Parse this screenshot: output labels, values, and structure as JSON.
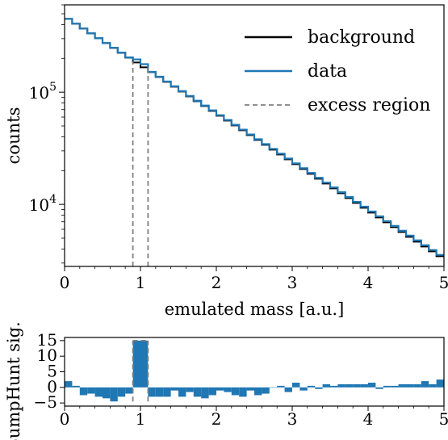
{
  "colors": {
    "background": "#000000",
    "data": "#1f77b4",
    "excess": "#808080",
    "significance": "#1f77b4"
  },
  "chart_data": [
    {
      "type": "line",
      "scale": "log-y",
      "title": "",
      "xlabel": "emulated mass [a.u.]",
      "ylabel": "counts",
      "xlim": [
        0,
        5
      ],
      "ylim": [
        2800,
        600000
      ],
      "x_ticks": [
        "0",
        "1",
        "2",
        "3",
        "4",
        "5"
      ],
      "y_ticks": [
        {
          "value": 10000,
          "label": "10^4"
        },
        {
          "value": 100000,
          "label": "10^5"
        }
      ],
      "legend": {
        "placement": "top-right",
        "entries": [
          {
            "label": "background",
            "color": "#000000",
            "style": "solid"
          },
          {
            "label": "data",
            "color": "#1f77b4",
            "style": "solid"
          },
          {
            "label": "excess region",
            "color": "#808080",
            "style": "dashed"
          }
        ]
      },
      "bin_width": 0.1,
      "series": [
        {
          "name": "background",
          "start": 450000,
          "end": 3450,
          "bins": 50
        },
        {
          "name": "data",
          "start": 450000,
          "end": 3550,
          "bins": 50,
          "excess_bins": [
            9,
            10
          ],
          "excess_factor": 1.06
        }
      ],
      "excess_region": [
        0.9,
        1.1
      ]
    },
    {
      "type": "bar",
      "title": "",
      "xlabel": "",
      "ylabel": "BumpHunt sig.",
      "xlim": [
        0,
        5
      ],
      "ylim": [
        -6,
        16
      ],
      "x_ticks": [
        "0",
        "1",
        "2",
        "3",
        "4",
        "5"
      ],
      "y_ticks": [
        "15",
        "10",
        "5",
        "0",
        "−5"
      ],
      "bin_width": 0.1,
      "values": [
        2.0,
        0.5,
        -2.5,
        -2.0,
        -3.0,
        -3.5,
        -4.5,
        -3.0,
        -2.0,
        15.0,
        15.0,
        -3.0,
        -3.0,
        -3.0,
        -1.0,
        -3.0,
        -1.5,
        -3.0,
        -3.5,
        -2.5,
        -1.0,
        -1.5,
        -2.5,
        -3.0,
        -1.0,
        -2.5,
        -2.0,
        0.0,
        0.5,
        -1.5,
        1.5,
        -1.0,
        0.5,
        -0.5,
        1.0,
        0.5,
        1.0,
        1.0,
        1.0,
        1.0,
        1.5,
        -0.5,
        0.5,
        0.5,
        1.0,
        1.0,
        1.0,
        2.0,
        1.0,
        2.5
      ],
      "excess_region": [
        0.9,
        1.1
      ]
    }
  ]
}
